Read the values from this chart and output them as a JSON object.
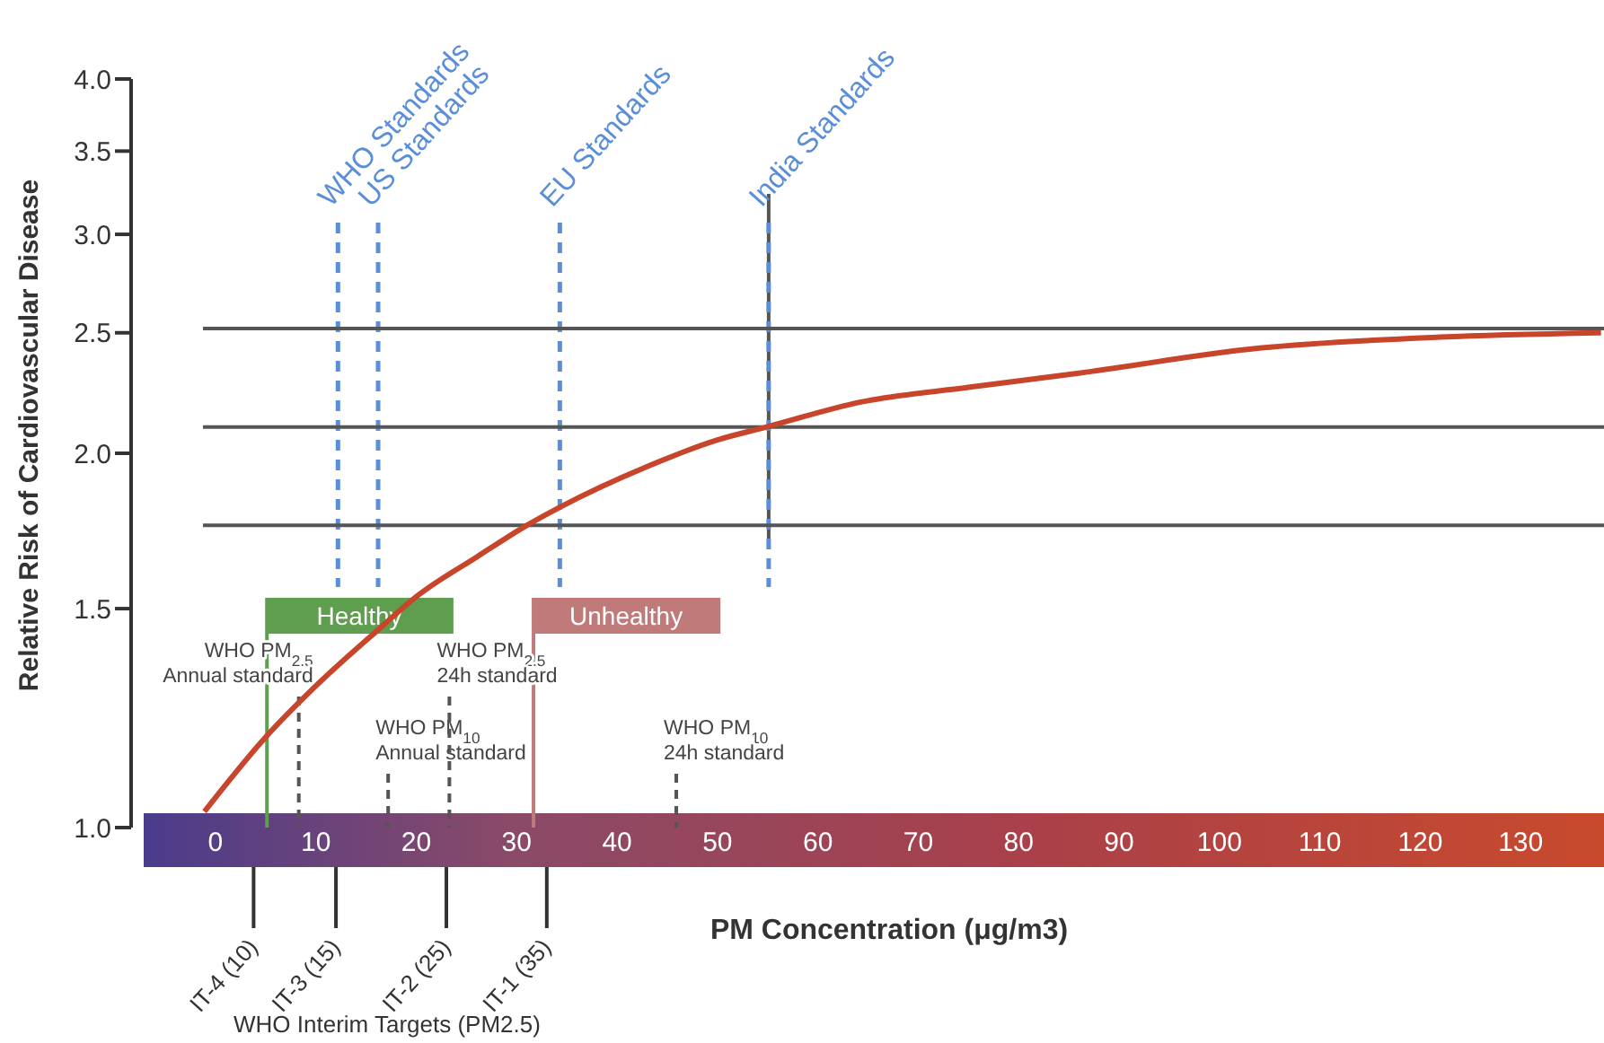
{
  "chart_data": {
    "type": "line",
    "xlabel": "PM Concentration (μg/m3)",
    "ylabel": "Relative Risk of Cardiovascular Disease",
    "xlim": [
      -8.4,
      138.3
    ],
    "xticks": [
      0,
      10,
      20,
      30,
      40,
      50,
      60,
      70,
      80,
      90,
      100,
      110,
      120,
      130
    ],
    "ylim": [
      1,
      4
    ],
    "yticks": [
      {
        "value": 1,
        "label": "1.0"
      },
      {
        "value": 1.5,
        "label": "1.5"
      },
      {
        "value": 2,
        "label": "2.0"
      },
      {
        "value": 2.5,
        "label": "2.5"
      },
      {
        "value": 3,
        "label": "3.0"
      },
      {
        "value": 3.5,
        "label": "3.5"
      },
      {
        "value": 4,
        "label": "4.0"
      }
    ],
    "log": true,
    "marker": "none",
    "line_style": "solid",
    "series": [
      {
        "color": "#c8442a",
        "x": [
          -1.1,
          4.9,
          10,
          16.1,
          20.3,
          26,
          31,
          34.3,
          42.9,
          50,
          54.9,
          64.4,
          75,
          86,
          104,
          122,
          138
        ],
        "values": [
          1.03,
          1.18,
          1.3,
          1.44,
          1.54,
          1.65,
          1.75,
          1.81,
          1.95,
          2.05,
          2.1,
          2.2,
          2.26,
          2.32,
          2.43,
          2.48,
          2.5
        ]
      }
    ],
    "ref_lines": [
      {
        "axis": "x",
        "value": 12.2,
        "label": "WHO Standards",
        "color": "#5b8ed8",
        "line_style": "dashed"
      },
      {
        "axis": "x",
        "value": 16.2,
        "label": "US Standards",
        "color": "#5b8ed8",
        "line_style": "dashed"
      },
      {
        "axis": "x",
        "value": 34.3,
        "label": "EU Standards",
        "color": "#5b8ed8",
        "line_style": "dashed"
      },
      {
        "axis": "x",
        "value": 55.1,
        "color": "#555555",
        "line_style": "solid"
      },
      {
        "axis": "x",
        "value": 55.1,
        "label": "India Standards",
        "color": "#5b8ed8",
        "line_style": "dashed"
      },
      {
        "axis": "x",
        "value": 8.3,
        "label": "WHO PM$_{2.5}$\nAnnual standard",
        "color": "#555555",
        "line_style": "dotted"
      },
      {
        "axis": "x",
        "value": 17.2,
        "label": "WHO PM$_{10}$\nAnnual standard",
        "color": "#555555",
        "line_style": "dotted"
      },
      {
        "axis": "x",
        "value": 23.3,
        "label": "WHO PM$_{2.5}$\n24h standard",
        "color": "#555555",
        "line_style": "dotted"
      },
      {
        "axis": "x",
        "value": 45.9,
        "label": "WHO PM$_{10}$\n24h standard",
        "color": "#555555",
        "line_style": "dotted"
      },
      {
        "axis": "x",
        "value": 3.8,
        "label": "IT-4 (10)",
        "color": "#333333",
        "line_style": "solid"
      },
      {
        "axis": "x",
        "value": 12,
        "label": "IT-3 (15)",
        "color": "#333333",
        "line_style": "solid"
      },
      {
        "axis": "x",
        "value": 23,
        "label": "IT-2 (25)",
        "color": "#333333",
        "line_style": "solid"
      },
      {
        "axis": "x",
        "value": 33,
        "label": "IT-1 (35)",
        "color": "#333333",
        "line_style": "solid"
      },
      {
        "axis": "y",
        "value": 1.75,
        "color": "#555555",
        "line_style": "solid"
      },
      {
        "axis": "y",
        "value": 2.1,
        "color": "#555555",
        "line_style": "solid"
      },
      {
        "axis": "y",
        "value": 2.52,
        "color": "#555555",
        "line_style": "solid"
      }
    ],
    "bands": [
      {
        "axis": "x",
        "from": 4.95,
        "to": 23.7,
        "label": "Healthy",
        "color": "#5e9e4e"
      },
      {
        "axis": "x",
        "from": 31.5,
        "to": 50.3,
        "label": "Unhealthy",
        "color": "#c07a7a"
      }
    ],
    "annotations": [
      "WHO Interim Targets (PM2.5)"
    ]
  }
}
